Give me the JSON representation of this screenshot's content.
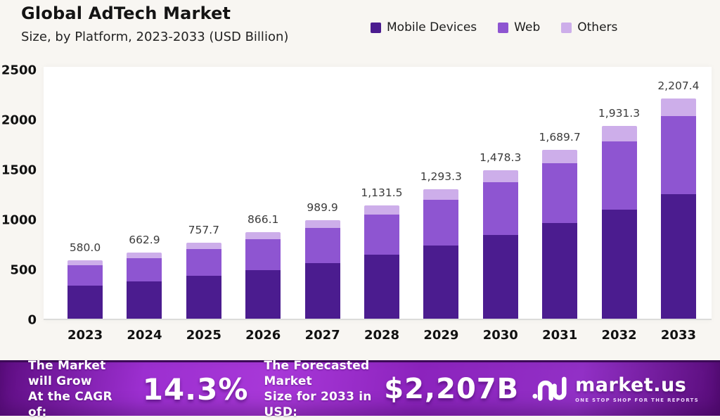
{
  "header": {
    "title": "Global AdTech Market",
    "subtitle": "Size, by Platform, 2023-2033 (USD Billion)"
  },
  "chart_data": {
    "type": "bar",
    "stacked": true,
    "title": "Global AdTech Market Size, by Platform, 2023-2033 (USD Billion)",
    "categories": [
      "2023",
      "2024",
      "2025",
      "2026",
      "2027",
      "2028",
      "2029",
      "2030",
      "2031",
      "2032",
      "2033"
    ],
    "series": [
      {
        "name": "Mobile Devices",
        "color": "#4b1c8f",
        "values": [
          327.7,
          374.5,
          428.1,
          489.3,
          559.3,
          639.3,
          730.7,
          835.2,
          954.7,
          1091.2,
          1247.2
        ]
      },
      {
        "name": "Web",
        "color": "#8e55d1",
        "values": [
          205.9,
          235.3,
          269.0,
          307.5,
          351.4,
          401.7,
          459.1,
          524.8,
          599.8,
          685.6,
          783.6
        ]
      },
      {
        "name": "Others",
        "color": "#cdaeea",
        "values": [
          46.4,
          53.0,
          60.6,
          69.3,
          79.2,
          90.5,
          103.5,
          118.3,
          135.2,
          154.5,
          176.6
        ]
      }
    ],
    "series_values_estimated_from_pixels": true,
    "totals": [
      580.0,
      662.9,
      757.7,
      866.1,
      989.9,
      1131.5,
      1293.3,
      1478.3,
      1689.7,
      1931.3,
      2207.4
    ],
    "total_labels": [
      "580.0",
      "662.9",
      "757.7",
      "866.1",
      "989.9",
      "1,131.5",
      "1,293.3",
      "1,478.3",
      "1,689.7",
      "1,931.3",
      "2,207.4"
    ],
    "xlabel": "",
    "ylabel": "",
    "ylim": [
      0,
      2500
    ],
    "yticks": [
      0,
      500,
      1000,
      1500,
      2000,
      2500
    ],
    "grid": false,
    "legend_position": "top-right"
  },
  "footer": {
    "cagr_label_line1": "The Market will Grow",
    "cagr_label_line2": "At the CAGR of:",
    "cagr_value": "14.3%",
    "forecast_label_line1": "The Forecasted Market",
    "forecast_label_line2": "Size for 2033 in USD:",
    "forecast_value": "$2,207B",
    "brand": {
      "name": "market.us",
      "tagline": "ONE STOP SHOP FOR THE REPORTS"
    }
  }
}
